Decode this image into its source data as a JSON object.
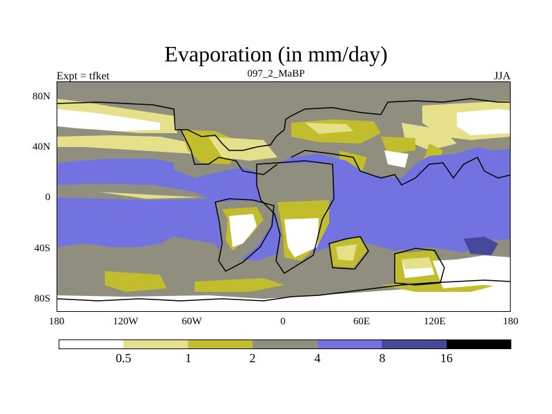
{
  "title": "Evaporation (in mm/day)",
  "subtitle_left": "Expt = tfket",
  "subtitle_center": "097_2_MaBP",
  "subtitle_right": "JJA",
  "lat_labels": [
    "80N",
    "40N",
    "0",
    "40S",
    "80S"
  ],
  "lon_labels": [
    "180",
    "120W",
    "60W",
    "0",
    "60E",
    "120E",
    "180"
  ],
  "colorbar": {
    "levels": [
      "0.5",
      "1",
      "2",
      "4",
      "8",
      "16"
    ],
    "colors": [
      "#ffffff",
      "#e5e08a",
      "#c2bd2c",
      "#8f8e7f",
      "#7272e0",
      "#474899",
      "#000000"
    ]
  }
}
